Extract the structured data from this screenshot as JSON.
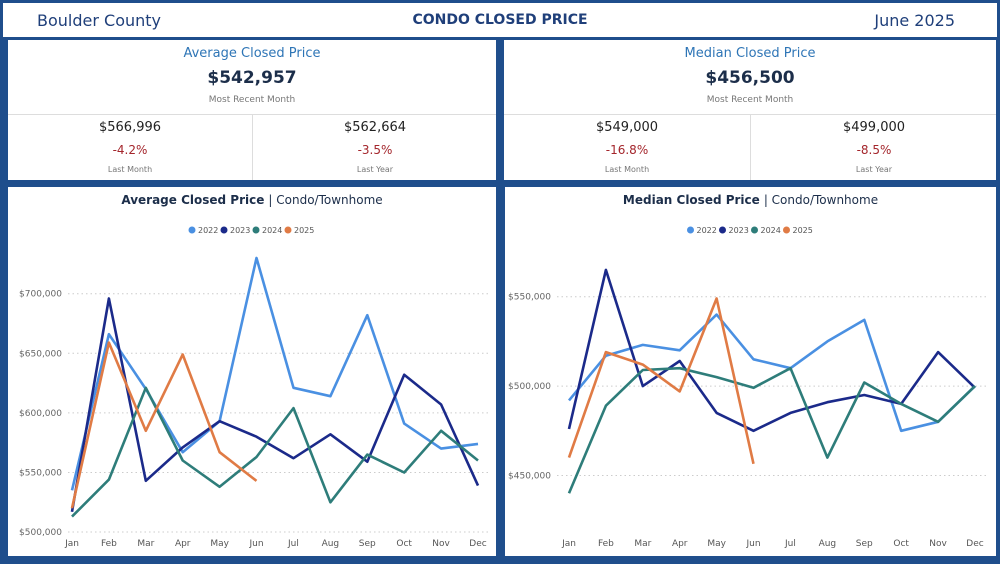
{
  "header": {
    "left": "Boulder County",
    "title": "CONDO CLOSED PRICE",
    "right": "June 2025"
  },
  "kpis": [
    {
      "title": "Average Closed Price",
      "value": "$542,957",
      "caption": "Most Recent Month",
      "comparisons": [
        {
          "value": "$566,996",
          "change": "-4.2%",
          "caption": "Last Month"
        },
        {
          "value": "$562,664",
          "change": "-3.5%",
          "caption": "Last Year"
        }
      ]
    },
    {
      "title": "Median Closed Price",
      "value": "$456,500",
      "caption": "Most Recent Month",
      "comparisons": [
        {
          "value": "$549,000",
          "change": "-16.8%",
          "caption": "Last Month"
        },
        {
          "value": "$499,000",
          "change": "-8.5%",
          "caption": "Last Year"
        }
      ]
    }
  ],
  "chart_data": [
    {
      "type": "line",
      "title": "Average Closed Price",
      "subtitle": "| Condo/Townhome",
      "categories": [
        "Jan",
        "Feb",
        "Mar",
        "Apr",
        "May",
        "Jun",
        "Jul",
        "Aug",
        "Sep",
        "Oct",
        "Nov",
        "Dec"
      ],
      "ylim": [
        495000,
        735000
      ],
      "yticks": [
        {
          "value": 500000,
          "label": "$500,000"
        },
        {
          "value": 550000,
          "label": "$550,000"
        },
        {
          "value": 600000,
          "label": "$600,000"
        },
        {
          "value": 650000,
          "label": "$650,000"
        },
        {
          "value": 700000,
          "label": "$700,000"
        }
      ],
      "grid": true,
      "series": [
        {
          "name": "2022",
          "color": "#4a90e2",
          "values": [
            535000,
            666000,
            620000,
            567000,
            593000,
            730000,
            621000,
            614000,
            682000,
            591000,
            570000,
            574000
          ]
        },
        {
          "name": "2023",
          "color": "#1b2a8a",
          "values": [
            517000,
            696000,
            543000,
            571000,
            593000,
            580000,
            562000,
            582000,
            559000,
            632000,
            607000,
            539000
          ]
        },
        {
          "name": "2024",
          "color": "#2e7d7a",
          "values": [
            513000,
            544000,
            621000,
            560000,
            538000,
            563000,
            604000,
            525000,
            565000,
            550000,
            585000,
            560000
          ]
        },
        {
          "name": "2025",
          "color": "#e07b45",
          "values": [
            520000,
            659000,
            585000,
            649000,
            567000,
            542957,
            null,
            null,
            null,
            null,
            null,
            null
          ]
        }
      ]
    },
    {
      "type": "line",
      "title": "Median Closed Price",
      "subtitle": "| Condo/Townhome",
      "categories": [
        "Jan",
        "Feb",
        "Mar",
        "Apr",
        "May",
        "Jun",
        "Jul",
        "Aug",
        "Sep",
        "Oct",
        "Nov",
        "Dec"
      ],
      "ylim": [
        415000,
        575000
      ],
      "yticks": [
        {
          "value": 450000,
          "label": "$450,000"
        },
        {
          "value": 500000,
          "label": "$500,000"
        },
        {
          "value": 550000,
          "label": "$550,000"
        }
      ],
      "grid": true,
      "series": [
        {
          "name": "2022",
          "color": "#4a90e2",
          "values": [
            492000,
            517000,
            523000,
            520000,
            540000,
            515000,
            510000,
            525000,
            537000,
            475000,
            480000,
            500000
          ]
        },
        {
          "name": "2023",
          "color": "#1b2a8a",
          "values": [
            476000,
            565000,
            500000,
            514000,
            485000,
            475000,
            485000,
            491000,
            495000,
            490000,
            519000,
            499000
          ]
        },
        {
          "name": "2024",
          "color": "#2e7d7a",
          "values": [
            440000,
            489000,
            509000,
            510000,
            505000,
            499000,
            510000,
            460000,
            502000,
            490000,
            480000,
            500000
          ]
        },
        {
          "name": "2025",
          "color": "#e07b45",
          "values": [
            460000,
            519000,
            512000,
            497000,
            549000,
            456500,
            null,
            null,
            null,
            null,
            null,
            null
          ]
        }
      ]
    }
  ]
}
